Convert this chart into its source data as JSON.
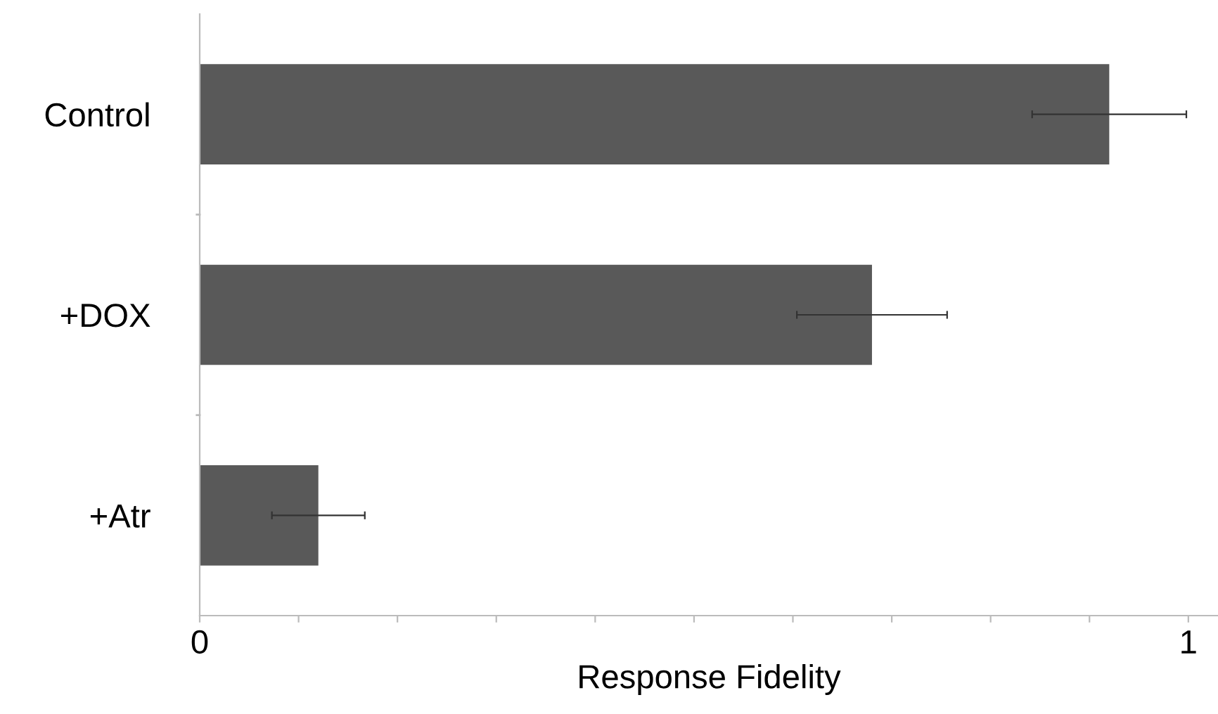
{
  "chart_data": {
    "type": "bar",
    "orientation": "horizontal",
    "xlabel": "Response Fidelity",
    "categories": [
      "Control",
      "+DOX",
      "+Atr"
    ],
    "values": [
      0.92,
      0.68,
      0.12
    ],
    "errors": [
      0.078,
      0.076,
      0.047
    ],
    "color": "#595959",
    "xlim": [
      0,
      1.03
    ],
    "xticks": [
      0,
      {
        "value": 0.1,
        "label": null
      },
      {
        "value": 0.2,
        "label": null
      },
      {
        "value": 0.3,
        "label": null
      },
      {
        "value": 0.4,
        "label": null
      },
      {
        "value": 0.5,
        "label": null
      },
      {
        "value": 0.6,
        "label": null
      },
      {
        "value": 0.7,
        "label": null
      },
      {
        "value": 0.8,
        "label": null
      },
      {
        "value": 0.9,
        "label": null
      },
      1
    ],
    "grid": false,
    "legend": false
  }
}
